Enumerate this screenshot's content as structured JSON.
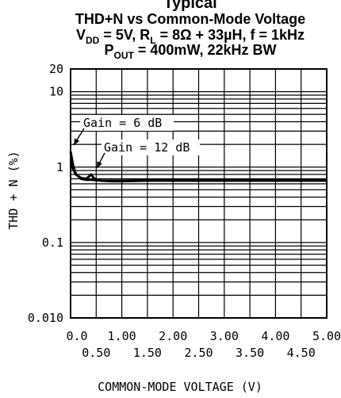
{
  "chart_data": {
    "type": "line",
    "title_partial": "Typical",
    "title_line1": "THD+N vs Common-Mode Voltage",
    "title_line2": {
      "vdd_label": "V",
      "vdd_sub": "DD",
      "vdd_rest": " = 5V, R",
      "rl_sub": "L",
      "rl_rest": " = 8Ω + 33µH, f = 1kHz"
    },
    "title_line3": {
      "p_label": "P",
      "p_sub": "OUT",
      "p_rest": " = 400mW, 22kHz BW"
    },
    "xlabel": "COMMON-MODE VOLTAGE (V)",
    "ylabel": "THD + N (%)",
    "x_scale": "linear",
    "y_scale": "log",
    "xlim": [
      0,
      5
    ],
    "ylim": [
      0.01,
      20
    ],
    "grid": true,
    "x_tick_labels_top": [
      "0.0",
      "1.00",
      "2.00",
      "3.00",
      "4.00",
      "5.00"
    ],
    "x_tick_labels_bottom": [
      "0.50",
      "1.50",
      "2.50",
      "3.50",
      "4.50"
    ],
    "y_tick_labels": [
      "20",
      "10",
      "1",
      "0.1",
      "0.010"
    ],
    "annotations": [
      {
        "text": "Gain = 6 dB",
        "series": "Gain = 6 dB"
      },
      {
        "text": "Gain = 12 dB",
        "series": "Gain = 12 dB"
      }
    ],
    "series": [
      {
        "name": "Gain = 6 dB",
        "x": [
          0.0,
          0.05,
          0.1,
          0.2,
          0.3,
          0.4,
          0.5,
          0.6,
          0.8,
          1.0,
          1.5,
          2.0,
          2.5,
          3.0,
          3.5,
          4.0,
          4.5,
          5.0
        ],
        "y": [
          1.6,
          1.05,
          0.82,
          0.7,
          0.68,
          0.68,
          0.67,
          0.66,
          0.66,
          0.66,
          0.67,
          0.67,
          0.67,
          0.67,
          0.67,
          0.67,
          0.67,
          0.67
        ]
      },
      {
        "name": "Gain = 12 dB",
        "x": [
          0.0,
          0.1,
          0.2,
          0.3,
          0.35,
          0.4,
          0.45,
          0.5,
          0.6,
          0.8,
          1.0,
          1.5,
          2.0,
          2.5,
          3.0,
          3.5,
          4.0,
          4.5,
          5.0
        ],
        "y": [
          1.1,
          0.8,
          0.72,
          0.7,
          0.74,
          0.8,
          0.72,
          0.68,
          0.66,
          0.65,
          0.65,
          0.66,
          0.66,
          0.66,
          0.66,
          0.66,
          0.66,
          0.66,
          0.66
        ]
      }
    ]
  }
}
